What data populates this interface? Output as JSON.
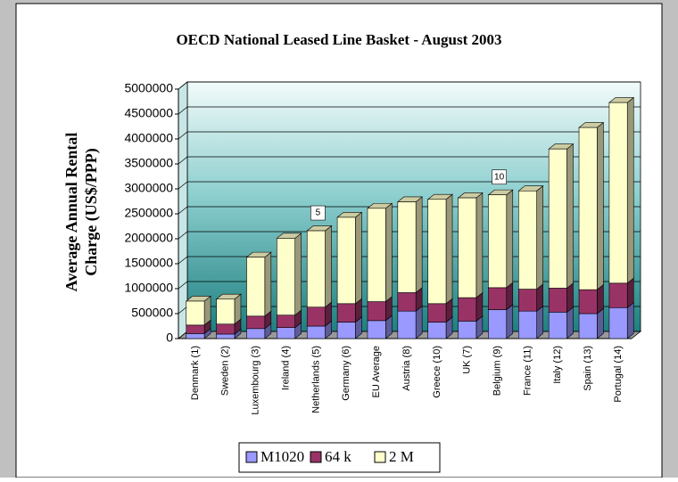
{
  "chart_data": {
    "type": "bar3d_stacked",
    "title": "OECD National Leased Line Basket - August 2003",
    "ylabel": [
      "Average Annual Rental",
      "Charge (US$/PPP)"
    ],
    "categories": [
      "Denmark (1)",
      "Sweden (2)",
      "Luxembourg (3)",
      "Ireland (4)",
      "Netherlands (5)",
      "Germany (6)",
      "EU Average",
      "Austria (8)",
      "Greece (10)",
      "UK (7)",
      "Belgium (9)",
      "France (11)",
      "Italy (12)",
      "Spain (13)",
      "Portugal (14)"
    ],
    "series": [
      {
        "name": "M1020",
        "color": "#9999ff",
        "values": [
          100000,
          90000,
          200000,
          220000,
          250000,
          330000,
          360000,
          550000,
          330000,
          350000,
          580000,
          550000,
          530000,
          500000,
          620000
        ]
      },
      {
        "name": "64 k",
        "color": "#993366",
        "values": [
          170000,
          200000,
          250000,
          250000,
          380000,
          370000,
          380000,
          370000,
          370000,
          470000,
          440000,
          440000,
          480000,
          480000,
          490000
        ]
      },
      {
        "name": "2 M",
        "color": "#ffffcc",
        "values": [
          480000,
          500000,
          1180000,
          1540000,
          1530000,
          1730000,
          1870000,
          1820000,
          2090000,
          2000000,
          1860000,
          1970000,
          2790000,
          3250000,
          3620000
        ]
      }
    ],
    "annotations": [
      {
        "text": "5",
        "category": 4
      },
      {
        "text": "10",
        "category": 10
      }
    ],
    "ylim": [
      0,
      5000000
    ],
    "yticks": [
      0,
      500000,
      1000000,
      1500000,
      2000000,
      2500000,
      3000000,
      3500000,
      4000000,
      4500000,
      5000000
    ],
    "grid": true,
    "legend": "bottom"
  }
}
